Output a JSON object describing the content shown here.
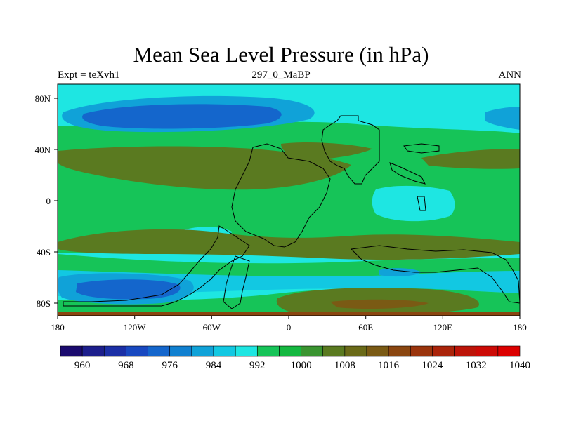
{
  "title": "Mean Sea Level Pressure (in hPa)",
  "left_label": "Expt = teXvh1",
  "center_label": "297_0_MaBP",
  "right_label": "ANN",
  "lat_ticks": [
    "80N",
    "40N",
    "0",
    "40S",
    "80S"
  ],
  "lon_ticks": [
    "180",
    "120W",
    "60W",
    "0",
    "60E",
    "120E",
    "180"
  ],
  "colorbar": {
    "labels": [
      "960",
      "968",
      "976",
      "984",
      "992",
      "1000",
      "1008",
      "1016",
      "1024",
      "1032",
      "1040"
    ],
    "colors": [
      "#1a0a6e",
      "#1c1e8c",
      "#1b2fa6",
      "#1848c0",
      "#1466cc",
      "#1080d0",
      "#10a2d8",
      "#12c8e2",
      "#1ee6e2",
      "#16c458",
      "#14b840",
      "#3a9430",
      "#5a7a20",
      "#6a6a18",
      "#7a5a14",
      "#8a4610",
      "#9a340c",
      "#aa240a",
      "#bc1408",
      "#cc0a06",
      "#dc0000"
    ]
  }
}
